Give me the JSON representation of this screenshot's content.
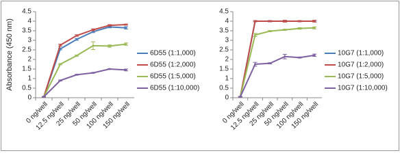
{
  "chart_data": [
    {
      "type": "line",
      "y_label": "Absorbance (450 nm)",
      "categories": [
        "0 ng/well",
        "12.5 ng/well",
        "25 ng/well",
        "50 ng/well",
        "100 ng/well",
        "150 ng/well"
      ],
      "ylim": [
        0,
        4.5
      ],
      "yticks": [
        0,
        0.5,
        1,
        1.5,
        2,
        2.5,
        3,
        3.5,
        4,
        4.5
      ],
      "series": [
        {
          "name": "6D55 (1:1,000)",
          "color": "#4a7ebb",
          "values": [
            0.05,
            2.55,
            3.05,
            3.45,
            3.7,
            3.65
          ],
          "errors": [
            0.02,
            0.05,
            0.05,
            0.05,
            0.05,
            0.06
          ]
        },
        {
          "name": "6D55 (1:2,000)",
          "color": "#be4b48",
          "values": [
            0.05,
            2.75,
            3.25,
            3.55,
            3.78,
            3.82
          ],
          "errors": [
            0.02,
            0.05,
            0.04,
            0.05,
            0.04,
            0.03
          ]
        },
        {
          "name": "6D55 (1:5,000)",
          "color": "#98b954",
          "values": [
            0.05,
            1.75,
            2.2,
            2.72,
            2.7,
            2.8
          ],
          "errors": [
            0.02,
            0.03,
            0.03,
            0.2,
            0.06,
            0.06
          ]
        },
        {
          "name": "6D55 (1:10,000)",
          "color": "#7d60a0",
          "values": [
            0.05,
            0.9,
            1.2,
            1.3,
            1.5,
            1.45
          ],
          "errors": [
            0.02,
            0.03,
            0.02,
            0.02,
            0.02,
            0.05
          ]
        }
      ]
    },
    {
      "type": "line",
      "categories": [
        "0 ng/well",
        "12.5 ng/well",
        "25 ng/well",
        "50 ng/well",
        "100 ng/well",
        "150 ng/well"
      ],
      "ylim": [
        0,
        4.5
      ],
      "yticks": [
        0,
        0.5,
        1,
        1.5,
        2,
        2.5,
        3,
        3.5,
        4,
        4.5
      ],
      "series": [
        {
          "name": "10G7 (1:1,000)",
          "color": "#4a7ebb",
          "values": [
            0.05,
            4.0,
            4.0,
            4.0,
            4.0,
            4.0
          ],
          "errors": [
            0.02,
            0.03,
            0.03,
            0.03,
            0.03,
            0.03
          ]
        },
        {
          "name": "10G7 (1:2,000)",
          "color": "#be4b48",
          "values": [
            0.05,
            4.0,
            4.0,
            4.0,
            4.0,
            4.0
          ],
          "errors": [
            0.02,
            0.03,
            0.03,
            0.05,
            0.03,
            0.05
          ]
        },
        {
          "name": "10G7 (1:5,000)",
          "color": "#98b954",
          "values": [
            0.05,
            3.28,
            3.48,
            3.55,
            3.62,
            3.65
          ],
          "errors": [
            0.02,
            0.08,
            0.03,
            0.03,
            0.04,
            0.05
          ]
        },
        {
          "name": "10G7 (1:10,000)",
          "color": "#7d60a0",
          "values": [
            0.05,
            1.75,
            1.8,
            2.15,
            2.1,
            2.22
          ],
          "errors": [
            0.02,
            0.1,
            0.03,
            0.12,
            0.03,
            0.06
          ]
        }
      ]
    }
  ]
}
